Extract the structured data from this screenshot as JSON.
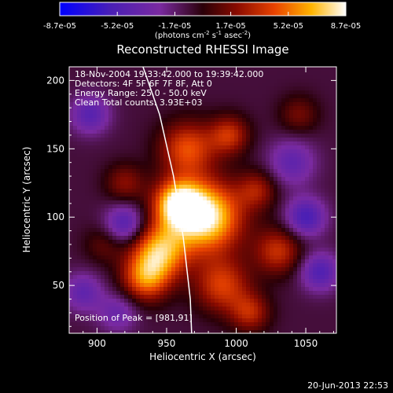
{
  "chart_data": {
    "type": "heatmap",
    "title": "Reconstructed RHESSI Image",
    "xlabel": "Heliocentric X (arcsec)",
    "ylabel": "Heliocentric Y (arcsec)",
    "xlim": [
      880,
      1072
    ],
    "ylim": [
      15,
      210
    ],
    "x_ticks": [
      "900",
      "950",
      "1000",
      "1050"
    ],
    "y_ticks": [
      "50",
      "100",
      "150",
      "200"
    ],
    "x_tick_values": [
      900,
      950,
      1000,
      1050
    ],
    "y_tick_values": [
      50,
      100,
      150,
      200
    ],
    "colorbar": {
      "ticks": [
        "-8.7e-05",
        "-5.2e-05",
        "-1.7e-05",
        "1.7e-05",
        "5.2e-05",
        "8.7e-05"
      ],
      "range": [
        -8.7e-05,
        8.7e-05
      ],
      "units_label": "(photons cm",
      "units_sup1": "-2",
      "units_mid": " s",
      "units_sup2": "-1",
      "units_mid2": " asec",
      "units_sup3": "-2",
      "units_end": ")"
    },
    "annotations": [
      "18-Nov-2004 19:33:42.000 to 19:39:42.000",
      "Detectors: 4F 5F 6F 7F 8F, Att 0",
      "Energy Range: 25.0 - 50.0 keV",
      "Clean     Total counts: 3.93E+03"
    ],
    "peak_label": "Position of Peak = [981,91]",
    "peak": [
      981,
      91
    ],
    "limb_points": [
      [
        933,
        210
      ],
      [
        945,
        175
      ],
      [
        955,
        130
      ],
      [
        962,
        85
      ],
      [
        967,
        40
      ],
      [
        968,
        15
      ]
    ],
    "blobs": [
      [
        978,
        100,
        18,
        1.0
      ],
      [
        958,
        110,
        12,
        0.8
      ],
      [
        945,
        75,
        14,
        0.75
      ],
      [
        935,
        55,
        12,
        0.6
      ],
      [
        965,
        150,
        14,
        0.55
      ],
      [
        995,
        160,
        10,
        0.45
      ],
      [
        1015,
        120,
        10,
        0.35
      ],
      [
        1030,
        75,
        12,
        0.45
      ],
      [
        990,
        50,
        14,
        0.5
      ],
      [
        1010,
        30,
        10,
        0.4
      ],
      [
        920,
        125,
        10,
        0.3
      ],
      [
        905,
        80,
        10,
        0.2
      ],
      [
        1045,
        175,
        10,
        0.25
      ],
      [
        895,
        175,
        10,
        -0.4
      ],
      [
        920,
        95,
        10,
        -0.45
      ],
      [
        1040,
        140,
        12,
        -0.35
      ],
      [
        1050,
        100,
        10,
        -0.5
      ],
      [
        1060,
        60,
        10,
        -0.45
      ],
      [
        890,
        45,
        10,
        -0.35
      ],
      [
        915,
        30,
        10,
        -0.3
      ]
    ]
  },
  "footer": {
    "date": "20-Jun-2013 22:53"
  }
}
